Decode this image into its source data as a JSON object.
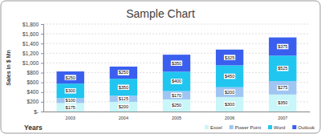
{
  "chart_data": {
    "type": "bar",
    "title": "Sample Chart",
    "xlabel": "Years",
    "ylabel": "Sales in $ Mn",
    "categories": [
      "2003",
      "2004",
      "2005",
      "2006",
      "2007"
    ],
    "series": [
      {
        "name": "Excel",
        "color": "#c9f6f8",
        "values": [
          175,
          200,
          250,
          300,
          350
        ],
        "value_labels": [
          "$175",
          "$200",
          "$250",
          "$300",
          "$350"
        ]
      },
      {
        "name": "Power Point",
        "color": "#9fc5f2",
        "values": [
          100,
          125,
          170,
          200,
          275
        ],
        "value_labels": [
          "$100",
          "$125",
          "$170",
          "$200",
          "$275"
        ]
      },
      {
        "name": "Word",
        "color": "#20c6f0",
        "values": [
          300,
          350,
          400,
          450,
          525
        ],
        "value_labels": [
          "$300",
          "$350",
          "$400",
          "$450",
          "$525"
        ]
      },
      {
        "name": "Outlook",
        "color": "#3a5fef",
        "values": [
          250,
          250,
          350,
          325,
          375
        ],
        "value_labels": [
          "$250",
          "$250",
          "$350",
          "$325",
          "$375"
        ]
      }
    ],
    "ylim": [
      0,
      1800
    ],
    "yticks": [
      {
        "value": 0,
        "label": "$-"
      },
      {
        "value": 200,
        "label": "$200"
      },
      {
        "value": 400,
        "label": "$400"
      },
      {
        "value": 600,
        "label": "$600"
      },
      {
        "value": 800,
        "label": "$800"
      },
      {
        "value": 1000,
        "label": "$1,000"
      },
      {
        "value": 1200,
        "label": "$1,200"
      },
      {
        "value": 1400,
        "label": "$1,400"
      },
      {
        "value": 1600,
        "label": "$1,600"
      },
      {
        "value": 1800,
        "label": "$1,800"
      }
    ],
    "stacked": true,
    "data_labels": true,
    "grid": true,
    "legend": "bottom-right"
  }
}
